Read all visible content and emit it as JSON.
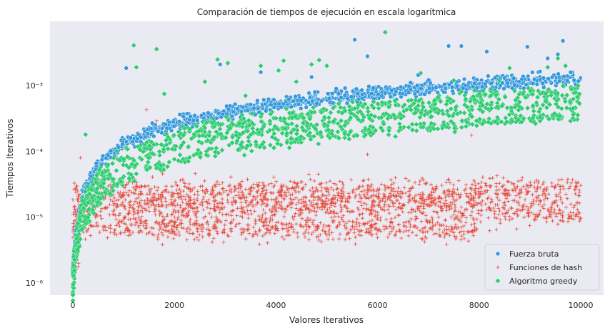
{
  "chart_data": {
    "type": "scatter",
    "title": "Comparación de tiempos de ejecución en escala logarítmica",
    "xlabel": "Valores Iterativos",
    "ylabel": "Tiempos Iterativos",
    "xlim": [
      -450,
      10450
    ],
    "ylim": [
      6.5e-07,
      0.0095
    ],
    "yscale": "log",
    "grid": false,
    "background": "#eaeaf2",
    "x_ticks": [
      0,
      2000,
      4000,
      6000,
      8000,
      10000
    ],
    "x_tick_labels": [
      "0",
      "2000",
      "4000",
      "6000",
      "8000",
      "10000"
    ],
    "y_ticks": [
      1e-06,
      1e-05,
      0.0001,
      0.001
    ],
    "y_tick_labels": [
      "10⁻⁶",
      "10⁻⁵",
      "10⁻⁴",
      "10⁻³"
    ],
    "legend_position": "bottom-right",
    "n_points_per_series": 10000,
    "series": [
      {
        "name": "Fuerza bruta",
        "marker": "circle",
        "color": "#3498db",
        "trend": [
          [
            0,
            1.6e-06
          ],
          [
            50,
            5e-06
          ],
          [
            200,
            2.3e-05
          ],
          [
            500,
            6e-05
          ],
          [
            1000,
            0.00013
          ],
          [
            2000,
            0.00027
          ],
          [
            3000,
            0.00039
          ],
          [
            4000,
            0.00052
          ],
          [
            5000,
            0.00064
          ],
          [
            6000,
            0.00078
          ],
          [
            7000,
            0.00092
          ],
          [
            8000,
            0.00103
          ],
          [
            9000,
            0.00118
          ],
          [
            10000,
            0.00132
          ]
        ],
        "outliers": [
          [
            1050,
            0.00185
          ],
          [
            2900,
            0.0021
          ],
          [
            3700,
            0.0016
          ],
          [
            5550,
            0.005
          ],
          [
            5800,
            0.0028
          ],
          [
            7400,
            0.004
          ],
          [
            7650,
            0.004
          ],
          [
            8150,
            0.0033
          ],
          [
            8950,
            0.0039
          ],
          [
            9350,
            0.0026
          ],
          [
            9550,
            0.003
          ],
          [
            9650,
            0.0048
          ],
          [
            6800,
            0.00145
          ],
          [
            4700,
            0.00135
          ]
        ]
      },
      {
        "name": "Funciones de hash",
        "marker": "plus",
        "color": "#e74c3c",
        "bands": [
          {
            "from": 0,
            "to": 8000,
            "center": 7e-06
          },
          {
            "from": 0,
            "to": 8000,
            "center": 1.45e-05
          },
          {
            "from": 0,
            "to": 8000,
            "center": 2.4e-05
          },
          {
            "from": 8000,
            "to": 10000,
            "center": 1.2e-05
          },
          {
            "from": 8000,
            "to": 10000,
            "center": 2.6e-05
          }
        ],
        "outliers": [
          [
            150,
            8e-05
          ],
          [
            1450,
            0.00043
          ],
          [
            1650,
            0.00029
          ],
          [
            2700,
            0.00029
          ],
          [
            5800,
            9e-05
          ],
          [
            7850,
            0.000175
          ],
          [
            7550,
            5e-06
          ]
        ]
      },
      {
        "name": "Algoritmo greedy",
        "marker": "diamond",
        "color": "#2ecc71",
        "trend": [
          [
            0,
            1e-06
          ],
          [
            50,
            3.5e-06
          ],
          [
            200,
            1.2e-05
          ],
          [
            500,
            3e-05
          ],
          [
            1000,
            6e-05
          ],
          [
            2000,
            0.00012
          ],
          [
            3000,
            0.000175
          ],
          [
            4000,
            0.000225
          ],
          [
            5000,
            0.00028
          ],
          [
            6000,
            0.00034
          ],
          [
            7000,
            0.0004
          ],
          [
            8000,
            0.00046
          ],
          [
            9000,
            0.00052
          ],
          [
            10000,
            0.00058
          ]
        ],
        "outliers": [
          [
            250,
            0.00018
          ],
          [
            1200,
            0.0041
          ],
          [
            1250,
            0.0019
          ],
          [
            1650,
            0.0036
          ],
          [
            1800,
            0.00075
          ],
          [
            2600,
            0.00115
          ],
          [
            2850,
            0.0025
          ],
          [
            3050,
            0.0022
          ],
          [
            3400,
            0.0007
          ],
          [
            3700,
            0.002
          ],
          [
            4050,
            0.0017
          ],
          [
            4150,
            0.0024
          ],
          [
            4400,
            0.00115
          ],
          [
            4700,
            0.0021
          ],
          [
            4850,
            0.00245
          ],
          [
            5000,
            0.002
          ],
          [
            6150,
            0.0065
          ],
          [
            6850,
            0.00155
          ],
          [
            7500,
            0.0012
          ],
          [
            8400,
            0.0012
          ],
          [
            8600,
            0.00185
          ],
          [
            9350,
            0.0019
          ],
          [
            9550,
            0.0026
          ],
          [
            9700,
            0.002
          ],
          [
            9950,
            0.001
          ]
        ]
      }
    ]
  }
}
